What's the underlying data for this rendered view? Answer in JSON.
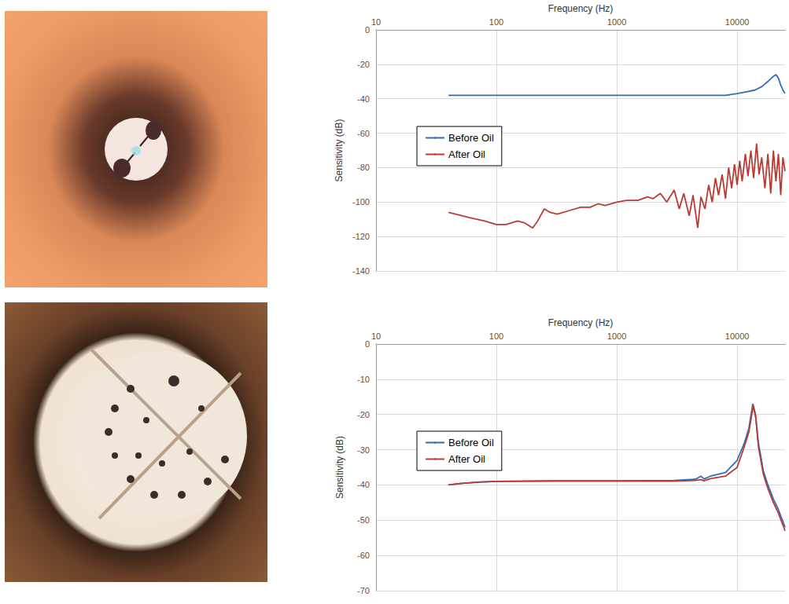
{
  "chart_data": [
    {
      "type": "line",
      "x_label": "Frequency (Hz)",
      "y_label": "Sensitivity (dB)",
      "log": "x",
      "grid": true,
      "legend": "left",
      "xlim": [
        10,
        25000
      ],
      "xticks": [
        10,
        100,
        1000,
        10000
      ],
      "ylim": [
        -140,
        0
      ],
      "yticks": [
        -140,
        -120,
        -100,
        -80,
        -60,
        -40,
        -20,
        0
      ],
      "series": [
        {
          "name": "Before Oil",
          "color": "#2e6db4",
          "x": [
            40,
            100,
            1000,
            5000,
            8000,
            10000,
            12000,
            14000,
            16000,
            18000,
            20000,
            21000,
            22000,
            23000,
            24000,
            25000
          ],
          "values": [
            -38,
            -38,
            -38,
            -38,
            -38,
            -37,
            -36,
            -35,
            -33,
            -30,
            -27,
            -26,
            -28,
            -32,
            -35,
            -37
          ]
        },
        {
          "name": "After Oil",
          "color": "#bb3a33",
          "x": [
            40,
            60,
            80,
            100,
            120,
            150,
            170,
            200,
            220,
            250,
            280,
            320,
            400,
            500,
            600,
            700,
            800,
            1000,
            1200,
            1500,
            1800,
            2000,
            2300,
            2600,
            3000,
            3300,
            3600,
            4000,
            4300,
            4700,
            5000,
            5400,
            5800,
            6200,
            6600,
            7000,
            7500,
            8000,
            8500,
            9000,
            9500,
            10000,
            10500,
            11000,
            11700,
            12300,
            13000,
            13700,
            14500,
            15200,
            16000,
            17000,
            18000,
            19000,
            20000,
            21000,
            22000,
            23000,
            24000,
            25000
          ],
          "values": [
            -106,
            -109,
            -111,
            -113,
            -113,
            -111,
            -112,
            -115,
            -111,
            -104,
            -106,
            -107,
            -105,
            -103,
            -103,
            -101,
            -102,
            -100,
            -99,
            -99,
            -97,
            -98,
            -95,
            -100,
            -93,
            -104,
            -95,
            -108,
            -96,
            -115,
            -97,
            -104,
            -90,
            -100,
            -86,
            -96,
            -84,
            -98,
            -80,
            -92,
            -78,
            -90,
            -76,
            -88,
            -72,
            -85,
            -70,
            -86,
            -66,
            -84,
            -74,
            -92,
            -72,
            -95,
            -70,
            -88,
            -72,
            -96,
            -74,
            -82
          ]
        }
      ]
    },
    {
      "type": "line",
      "x_label": "Frequency (Hz)",
      "y_label": "Sensitivity (dB)",
      "log": "x",
      "grid": true,
      "legend": "left",
      "xlim": [
        10,
        25000
      ],
      "xticks": [
        10,
        100,
        1000,
        10000
      ],
      "ylim": [
        -70,
        0
      ],
      "yticks": [
        -70,
        -60,
        -50,
        -40,
        -30,
        -20,
        -10,
        0
      ],
      "series": [
        {
          "name": "Before Oil",
          "color": "#2e6db4",
          "x": [
            40,
            50,
            70,
            100,
            300,
            1000,
            3000,
            4500,
            5000,
            5300,
            6000,
            8000,
            10000,
            11500,
            12500,
            13500,
            14200,
            15000,
            16500,
            18000,
            20000,
            22000,
            25000
          ],
          "values": [
            -40,
            -39.6,
            -39.2,
            -39,
            -38.8,
            -38.8,
            -38.7,
            -38.4,
            -37.5,
            -38.3,
            -37.5,
            -36.5,
            -33,
            -28,
            -24,
            -17,
            -20,
            -28,
            -36,
            -40,
            -44,
            -47,
            -52
          ]
        },
        {
          "name": "After Oil",
          "color": "#bb3a33",
          "x": [
            40,
            50,
            70,
            100,
            300,
            1000,
            3000,
            4500,
            5000,
            5300,
            6000,
            8000,
            10000,
            11500,
            12500,
            13600,
            14300,
            15000,
            16500,
            18000,
            20000,
            22000,
            25000
          ],
          "values": [
            -40,
            -39.6,
            -39.2,
            -39,
            -38.9,
            -38.9,
            -38.9,
            -38.7,
            -38.5,
            -38.8,
            -38.2,
            -37.5,
            -35,
            -29,
            -25,
            -17.5,
            -21,
            -29,
            -37,
            -41,
            -45,
            -48,
            -53
          ]
        }
      ]
    }
  ]
}
